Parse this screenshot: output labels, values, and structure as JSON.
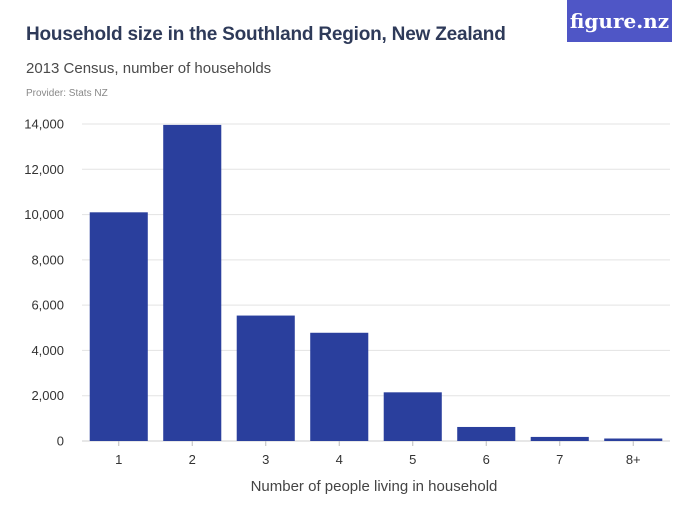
{
  "header": {
    "title": "Household size in the Southland Region, New Zealand",
    "subtitle": "2013 Census, number of households",
    "provider": "Provider: Stats NZ",
    "logo_text": "figure.nz"
  },
  "colors": {
    "bar": "#2a3f9d",
    "logo_bg": "#4f56c6",
    "grid": "#e3e3e3"
  },
  "chart_data": {
    "type": "bar",
    "title": "Household size in the Southland Region, New Zealand",
    "subtitle": "2013 Census, number of households",
    "xlabel": "Number of people living in household",
    "ylabel": "",
    "categories": [
      "1",
      "2",
      "3",
      "4",
      "5",
      "6",
      "7",
      "8+"
    ],
    "values": [
      10100,
      13960,
      5540,
      4780,
      2150,
      620,
      180,
      110
    ],
    "ylim": [
      0,
      14000
    ],
    "yticks": [
      0,
      2000,
      4000,
      6000,
      8000,
      10000,
      12000,
      14000
    ],
    "ytick_labels": [
      "0",
      "2,000",
      "4,000",
      "6,000",
      "8,000",
      "10,000",
      "12,000",
      "14,000"
    ],
    "grid": true,
    "legend": "none"
  }
}
